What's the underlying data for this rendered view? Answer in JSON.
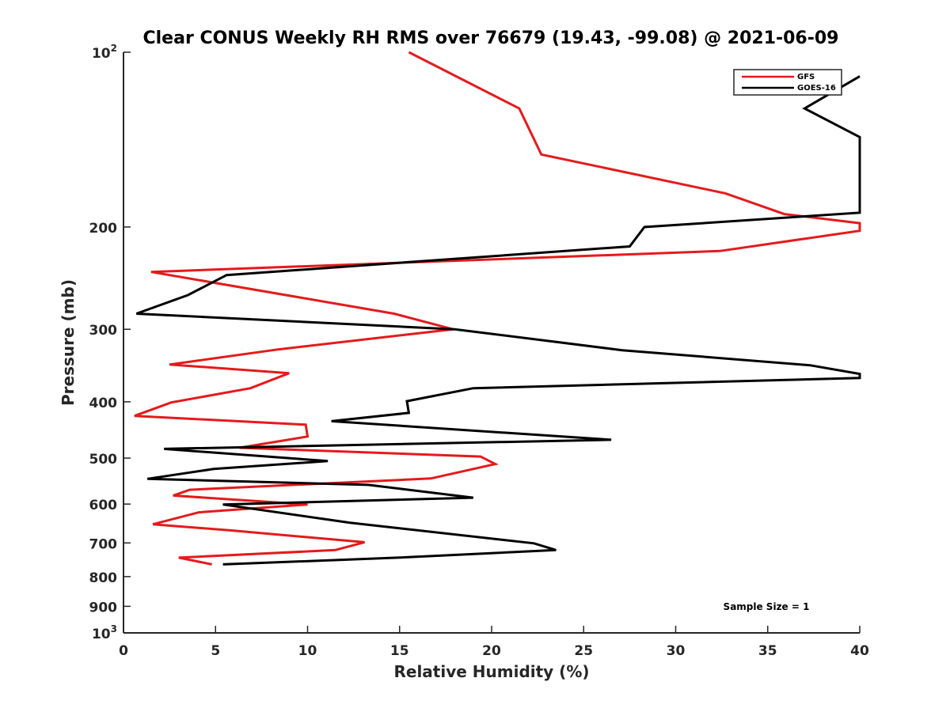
{
  "chart_data": {
    "type": "line",
    "title": "Clear CONUS Weekly RH RMS over 76679 (19.43, -99.08) @ 2021-06-09",
    "xlabel": "Relative Humidity (%)",
    "ylabel": "Pressure (mb)",
    "xlim": [
      0,
      40
    ],
    "ylim": [
      100,
      1000
    ],
    "y_scale": "log",
    "y_reversed": true,
    "x_ticks": [
      0,
      5,
      10,
      15,
      20,
      25,
      30,
      35,
      40
    ],
    "x_tick_labels": [
      "0",
      "5",
      "10",
      "15",
      "20",
      "25",
      "30",
      "35",
      "40"
    ],
    "y_ticks": [
      {
        "value": 100,
        "base": "10",
        "exp": "2"
      },
      {
        "value": 200,
        "label": "200"
      },
      {
        "value": 300,
        "label": "300"
      },
      {
        "value": 400,
        "label": "400"
      },
      {
        "value": 500,
        "label": "500"
      },
      {
        "value": 600,
        "label": "600"
      },
      {
        "value": 700,
        "label": "700"
      },
      {
        "value": 800,
        "label": "800"
      },
      {
        "value": 900,
        "label": "900"
      },
      {
        "value": 1000,
        "base": "10",
        "exp": "3"
      }
    ],
    "grid": false,
    "legend_position": "top-right",
    "annotation": "Sample Size = 1",
    "series": [
      {
        "name": "GFS",
        "color": "#e41a1c",
        "points": [
          [
            15.5,
            100
          ],
          [
            21.5,
            125
          ],
          [
            22.7,
            150
          ],
          [
            32.7,
            175
          ],
          [
            35.9,
            190
          ],
          [
            40.0,
            197
          ],
          [
            40.0,
            203
          ],
          [
            32.4,
            220
          ],
          [
            1.5,
            239
          ],
          [
            14.7,
            282
          ],
          [
            17.9,
            300
          ],
          [
            8.4,
            325
          ],
          [
            2.5,
            345
          ],
          [
            9.0,
            357
          ],
          [
            6.9,
            379
          ],
          [
            2.6,
            401
          ],
          [
            0.6,
            423
          ],
          [
            9.9,
            438
          ],
          [
            10.0,
            459
          ],
          [
            6.3,
            480
          ],
          [
            19.4,
            497
          ],
          [
            20.2,
            512
          ],
          [
            16.7,
            542
          ],
          [
            3.6,
            567
          ],
          [
            2.7,
            580
          ],
          [
            10.0,
            601
          ],
          [
            4.1,
            620
          ],
          [
            1.6,
            650
          ],
          [
            5.8,
            666
          ],
          [
            13.1,
            698
          ],
          [
            11.5,
            720
          ],
          [
            3.0,
            742
          ],
          [
            4.8,
            762
          ]
        ]
      },
      {
        "name": "GOES-16",
        "color": "#000000",
        "points": [
          [
            40.0,
            110
          ],
          [
            37.0,
            125
          ],
          [
            40.0,
            140
          ],
          [
            40.0,
            189
          ],
          [
            28.3,
            200
          ],
          [
            27.5,
            216
          ],
          [
            5.6,
            242
          ],
          [
            3.5,
            262
          ],
          [
            0.7,
            282
          ],
          [
            18.0,
            300
          ],
          [
            27.1,
            326
          ],
          [
            37.3,
            346
          ],
          [
            40.0,
            358
          ],
          [
            40.0,
            364
          ],
          [
            19.0,
            379
          ],
          [
            15.4,
            399
          ],
          [
            15.5,
            418
          ],
          [
            11.3,
            432
          ],
          [
            26.5,
            465
          ],
          [
            2.2,
            482
          ],
          [
            11.1,
            506
          ],
          [
            4.9,
            522
          ],
          [
            1.3,
            543
          ],
          [
            13.3,
            556
          ],
          [
            19.0,
            585
          ],
          [
            5.4,
            601
          ],
          [
            12.3,
            646
          ],
          [
            22.3,
            701
          ],
          [
            23.5,
            720
          ],
          [
            14.9,
            742
          ],
          [
            5.4,
            762
          ]
        ]
      }
    ]
  }
}
